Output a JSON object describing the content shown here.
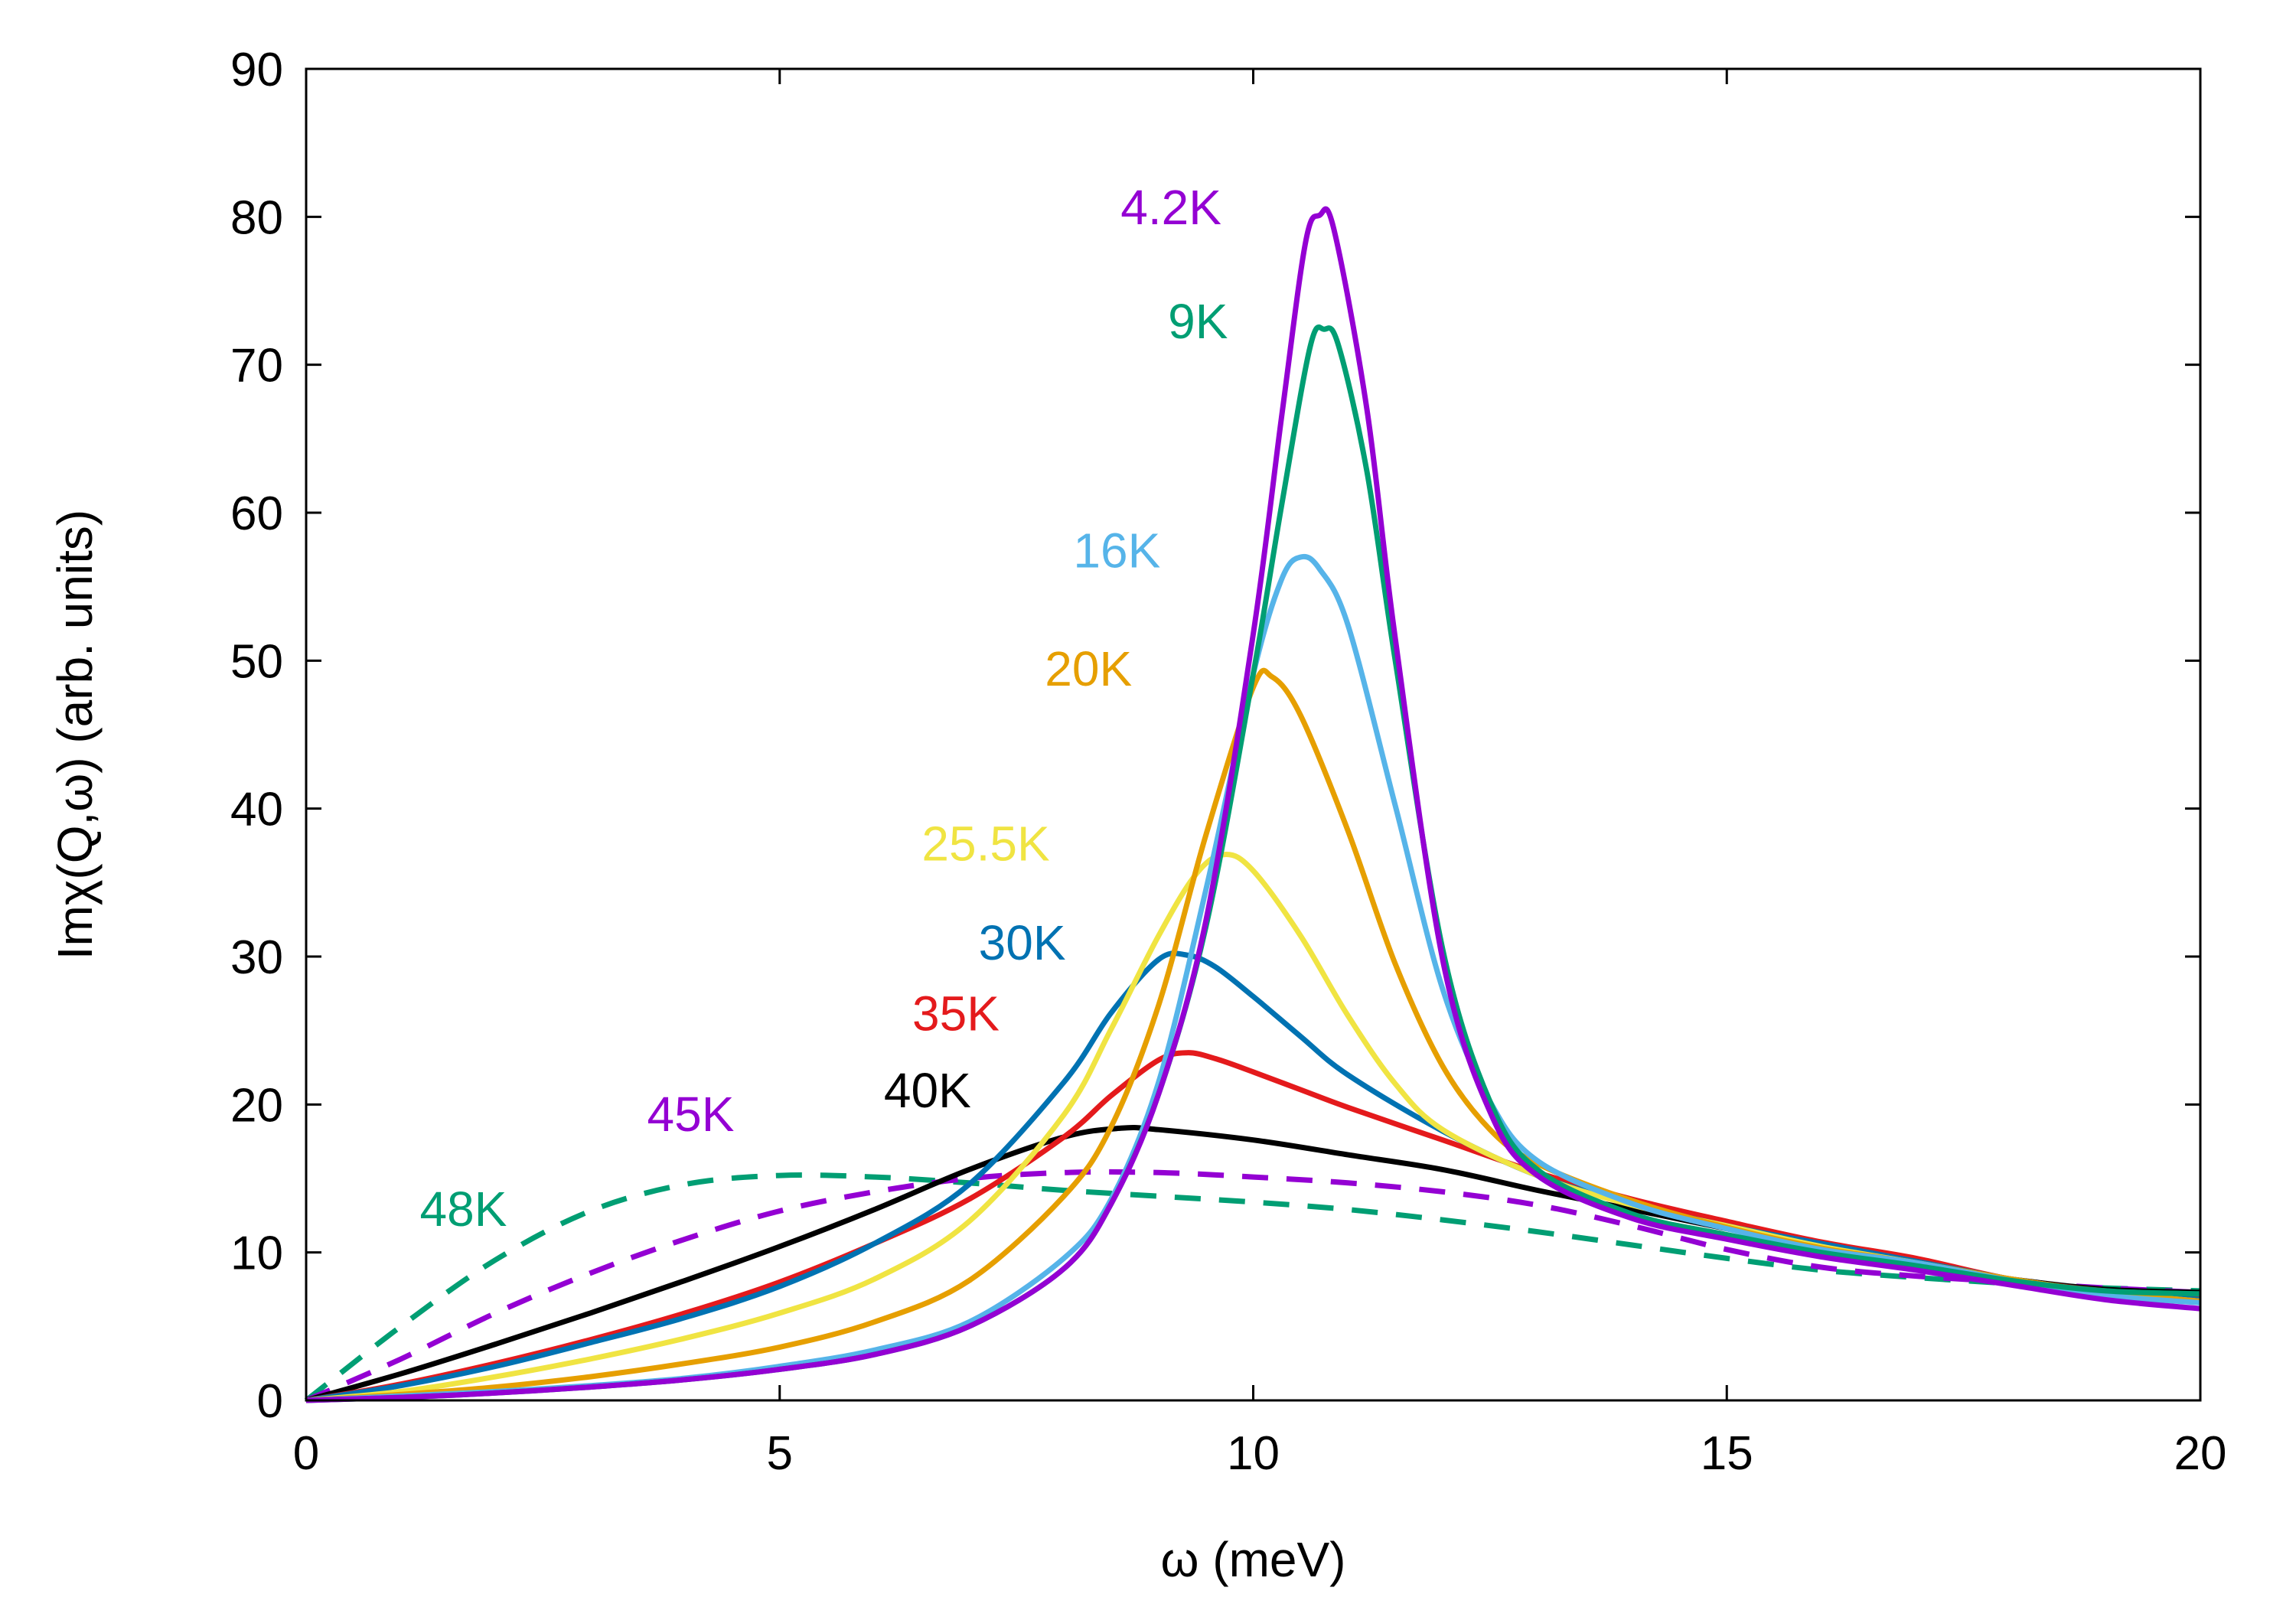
{
  "chart_data": {
    "type": "line",
    "title": "",
    "xlabel": "ω (meV)",
    "ylabel": "Imχ(Q,ω) (arb. units)",
    "xlim": [
      0,
      20
    ],
    "ylim": [
      0,
      90
    ],
    "xticks": [
      0,
      5,
      10,
      15,
      20
    ],
    "xtick_labels": [
      "0",
      "5",
      "10",
      "15",
      "20"
    ],
    "yticks": [
      0,
      10,
      20,
      30,
      40,
      50,
      60,
      70,
      80,
      90
    ],
    "ytick_labels": [
      "0",
      "10",
      "20",
      "30",
      "40",
      "50",
      "60",
      "70",
      "80",
      "90"
    ],
    "grid": false,
    "series": [
      {
        "name": "48K",
        "label": "48K",
        "color": "#009e73",
        "dashed": true,
        "x": [
          0,
          1,
          2,
          3,
          4,
          5,
          6,
          7,
          8,
          9,
          10,
          11,
          12,
          13,
          14,
          15,
          16,
          17,
          18,
          19,
          20
        ],
        "y": [
          0,
          5,
          9.5,
          12.8,
          14.6,
          15.2,
          15.1,
          14.7,
          14.2,
          13.8,
          13.4,
          12.9,
          12.2,
          11.4,
          10.5,
          9.6,
          8.8,
          8.3,
          7.9,
          7.6,
          7.4
        ],
        "label_pos": [
          1.2,
          11.8
        ]
      },
      {
        "name": "45K",
        "label": "45K",
        "color": "#9400d3",
        "dashed": true,
        "x": [
          0,
          1,
          2,
          3,
          4,
          5,
          6,
          7,
          8,
          9,
          10,
          11,
          12,
          13,
          14,
          15,
          16,
          17,
          18,
          19,
          20
        ],
        "y": [
          0,
          2.8,
          5.9,
          8.6,
          10.9,
          12.8,
          14.1,
          15,
          15.4,
          15.4,
          15.1,
          14.7,
          14.1,
          13.2,
          11.8,
          10.2,
          9,
          8.4,
          8,
          7.6,
          7.3
        ],
        "label_pos": [
          3.6,
          18.2
        ]
      },
      {
        "name": "40K",
        "label": "40K",
        "color": "#000000",
        "dashed": false,
        "x": [
          0,
          1,
          2,
          3,
          4,
          5,
          6,
          7,
          8,
          8.6,
          9,
          10,
          11,
          12,
          13,
          14,
          15,
          16,
          17,
          18,
          19,
          20
        ],
        "y": [
          0,
          1.8,
          3.8,
          5.9,
          8.1,
          10.4,
          12.9,
          15.6,
          17.8,
          18.4,
          18.3,
          17.6,
          16.6,
          15.6,
          14.2,
          12.9,
          11.6,
          10.3,
          9.2,
          8.2,
          7.5,
          7.3
        ],
        "label_pos": [
          6.1,
          19.8
        ]
      },
      {
        "name": "35K",
        "label": "35K",
        "color": "#e41a1c",
        "dashed": false,
        "x": [
          0,
          1,
          2,
          3,
          4,
          5,
          6,
          7,
          8,
          8.5,
          9,
          9.3,
          9.6,
          10,
          10.5,
          11,
          12,
          13,
          14,
          15,
          16,
          17,
          18,
          19,
          20
        ],
        "y": [
          0,
          1.1,
          2.5,
          4.1,
          5.9,
          8,
          10.6,
          13.6,
          17.8,
          20.6,
          23,
          23.5,
          23.1,
          22.2,
          21,
          19.8,
          17.6,
          15.4,
          13.6,
          12.1,
          10.7,
          9.6,
          8.2,
          7.4,
          7.0
        ],
        "label_pos": [
          6.4,
          25
        ]
      },
      {
        "name": "30K",
        "label": "30K",
        "color": "#0072b2",
        "dashed": false,
        "x": [
          0,
          1,
          2,
          3,
          4,
          5,
          6,
          7,
          8,
          8.5,
          9,
          9.3,
          9.6,
          10,
          10.5,
          11,
          12,
          13,
          14,
          15,
          16,
          17,
          18,
          19,
          20
        ],
        "y": [
          0,
          1.0,
          2.3,
          3.9,
          5.6,
          7.7,
          10.6,
          14.6,
          21.5,
          26.2,
          29.8,
          30.1,
          29.3,
          27.3,
          24.6,
          22,
          18.2,
          15.2,
          13.3,
          11.8,
          10.6,
          9.4,
          8.2,
          7.3,
          6.8
        ],
        "label_pos": [
          7.1,
          29.8
        ]
      },
      {
        "name": "25.5K",
        "label": "25.5K",
        "color": "#f0e442",
        "dashed": false,
        "x": [
          0,
          1,
          2,
          3,
          4,
          5,
          6,
          7,
          8,
          8.5,
          9,
          9.4,
          9.7,
          10,
          10.5,
          11,
          11.5,
          12,
          13,
          14,
          15,
          16,
          17,
          18,
          19,
          20
        ],
        "y": [
          0,
          0.6,
          1.6,
          2.8,
          4.2,
          5.9,
          8.2,
          12.1,
          19.3,
          25.1,
          31.4,
          35.6,
          36.9,
          35.8,
          31.4,
          26,
          21.4,
          18.3,
          15.2,
          13.2,
          11.8,
          10.4,
          9.3,
          8.2,
          7.3,
          6.7
        ],
        "label_pos": [
          6.5,
          36.5
        ]
      },
      {
        "name": "20K",
        "label": "20K",
        "color": "#e69f00",
        "dashed": false,
        "x": [
          0,
          1,
          2,
          3,
          4,
          5,
          6,
          7,
          8,
          8.5,
          9,
          9.5,
          10,
          10.2,
          10.5,
          11,
          11.5,
          12,
          12.5,
          13,
          14,
          15,
          16,
          17,
          18,
          19,
          20
        ],
        "y": [
          0,
          0.4,
          0.9,
          1.6,
          2.5,
          3.6,
          5.3,
          8.1,
          13.8,
          18.5,
          26.7,
          38.2,
          48.2,
          48.9,
          46.3,
          38.5,
          29.5,
          22.6,
          18.3,
          16,
          13.5,
          11.7,
          10.3,
          9.3,
          8.2,
          7.3,
          6.7
        ],
        "label_pos": [
          7.8,
          48.3
        ]
      },
      {
        "name": "16K",
        "label": "16K",
        "color": "#56b4e9",
        "dashed": false,
        "x": [
          0,
          1,
          2,
          3,
          4,
          5,
          6,
          7,
          8,
          8.5,
          9,
          9.5,
          10,
          10.3,
          10.5,
          10.7,
          11,
          11.5,
          12,
          12.5,
          13,
          14,
          15,
          16,
          17,
          18,
          19,
          20
        ],
        "y": [
          0,
          0.3,
          0.6,
          1.0,
          1.5,
          2.3,
          3.4,
          5.3,
          9.6,
          13.6,
          21.5,
          34.5,
          49.1,
          55.5,
          57,
          56.2,
          52.4,
          40.2,
          27.8,
          20.2,
          16.2,
          13.3,
          11.6,
          10.2,
          9.3,
          8.1,
          7.1,
          6.6
        ],
        "label_pos": [
          8.1,
          56.3
        ]
      },
      {
        "name": "9K",
        "label": "9K",
        "color": "#009e73",
        "dashed": false,
        "x": [
          0,
          1,
          2,
          3,
          4,
          5,
          6,
          7,
          8,
          8.5,
          9,
          9.5,
          10,
          10.3,
          10.6,
          10.75,
          10.9,
          11.2,
          11.5,
          12,
          12.5,
          13,
          14,
          15,
          16,
          17,
          18,
          19,
          20
        ],
        "y": [
          0,
          0.2,
          0.5,
          0.9,
          1.4,
          2.1,
          3.1,
          5,
          8.9,
          13.3,
          20.7,
          32,
          49.1,
          60.5,
          71.2,
          72.4,
          71.3,
          62.8,
          50,
          30.5,
          20.2,
          15.6,
          12.6,
          11.2,
          10,
          9.1,
          8.1,
          7.4,
          7.2
        ],
        "label_pos": [
          9.1,
          71.8
        ]
      },
      {
        "name": "4.2K",
        "label": "4.2K",
        "color": "#9400d3",
        "dashed": false,
        "x": [
          0,
          1,
          2,
          3,
          4,
          5,
          6,
          7,
          8,
          8.5,
          9,
          9.5,
          10,
          10.3,
          10.55,
          10.7,
          10.85,
          11.2,
          11.5,
          12,
          12.5,
          13,
          14,
          15,
          16,
          17,
          18,
          19,
          20
        ],
        "y": [
          0,
          0.2,
          0.5,
          0.9,
          1.4,
          2.1,
          3.1,
          5,
          8.9,
          13.3,
          20.7,
          32.4,
          51.8,
          66.5,
          78.2,
          80.1,
          79.2,
          67,
          51.5,
          29.8,
          19.5,
          15.2,
          12.3,
          10.9,
          9.7,
          8.8,
          7.8,
          6.8,
          6.2
        ],
        "label_pos": [
          8.6,
          79.5
        ]
      }
    ]
  }
}
